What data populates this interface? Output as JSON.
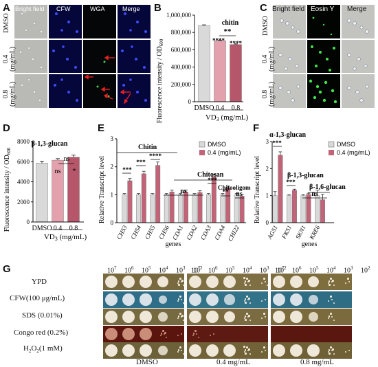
{
  "panels": {
    "A": {
      "letter": "A",
      "columns": [
        "Bright field",
        "CFW",
        "WGA",
        "Merge"
      ],
      "rows": [
        "DMSO",
        "0.4\n(mg/mL)",
        "0.8\n(mg/mL)"
      ]
    },
    "B": {
      "letter": "B",
      "ylabel": "Fluorescence intensity / OD",
      "ylabel_sub": "600",
      "annotation": "chitin",
      "sig": [
        "**",
        "****",
        "****"
      ],
      "yticks": [
        "0",
        "200,000",
        "400,000",
        "600,000",
        "800,000",
        "1,000,000"
      ],
      "xlabel": "VD",
      "xlabel_sub": "3",
      "xlabel_tail": " (mg/mL)"
    },
    "C": {
      "letter": "C",
      "columns": [
        "Bright field",
        "Eosin Y",
        "Merge"
      ],
      "rows": [
        "DMSO",
        "0.4\n(mg/mL)",
        "0.8\n(mg/mL)"
      ]
    },
    "D": {
      "letter": "D",
      "annotation": "β-1,3-glucan",
      "ylabel": "Fluorescence intensity / OD",
      "ylabel_sub": "600",
      "sig": [
        "ns",
        "ns",
        "*"
      ],
      "yticks": [
        "0",
        "2000",
        "4000",
        "6000",
        "8000"
      ],
      "xlabel": "VD",
      "xlabel_sub": "3",
      "xlabel_tail": " (mg/mL)"
    },
    "E": {
      "letter": "E",
      "ylabel": "Relative Transcript level",
      "xlabel": "genes",
      "legend": [
        "DMSO",
        "0.4 (mg/mL)"
      ],
      "groups": [
        "Chitin",
        "Chitosan",
        "Chitooligomer"
      ],
      "sig": [
        "***",
        "***",
        "****",
        "ns",
        "***",
        "**",
        "ns"
      ],
      "yticks": [
        "0",
        "1",
        "2",
        "3"
      ]
    },
    "F": {
      "letter": "F",
      "ylabel": "Relative Transcript level",
      "xlabel": "genes",
      "legend": [
        "DMSO",
        "0.4 (mg/mL)"
      ],
      "groups": [
        "α-1,3-glucan",
        "β-1,3-glucan",
        "β-1,6-glucan"
      ],
      "sig": [
        "***",
        "***",
        "ns"
      ],
      "yticks": [
        "0",
        "1",
        "2",
        "3"
      ]
    },
    "G": {
      "letter": "G",
      "dilutions": [
        "10",
        "10",
        "10",
        "10",
        "10",
        "10"
      ],
      "exponents": [
        "7",
        "6",
        "5",
        "4",
        "3",
        "2"
      ],
      "rows": [
        "YPD",
        "CFW(100 μg/mL)",
        "SDS (0.01%)",
        "Congo red (0.2%)",
        "H",
        "O"
      ],
      "h2o2": {
        "h": "H",
        "sub": "2",
        "o": "O",
        "sub2": "2",
        "tail": "(1 mM)"
      },
      "groups": [
        "DMSO",
        "0.4 mg/mL",
        "0.8 mg/mL"
      ]
    }
  },
  "chart_data": [
    {
      "panel": "B",
      "type": "bar",
      "categories": [
        "DMSO",
        "0.4",
        "0.8"
      ],
      "values": [
        880000,
        705000,
        660000
      ],
      "errors": [
        8000,
        6000,
        8000
      ],
      "colors": [
        "#d9d9d9",
        "#e3a0ad",
        "#b5566a"
      ],
      "ylim": [
        0,
        1000000
      ],
      "annotation": "chitin"
    },
    {
      "panel": "D",
      "type": "bar",
      "categories": [
        "DMSO",
        "0.4",
        "0.8"
      ],
      "values": [
        5850,
        6150,
        6450
      ],
      "errors": [
        200,
        150,
        200
      ],
      "colors": [
        "#d9d9d9",
        "#e3a0ad",
        "#b5566a"
      ],
      "ylim": [
        0,
        8000
      ],
      "annotation": "β-1,3-glucan"
    },
    {
      "panel": "E",
      "type": "bar",
      "categories": [
        "CHS3",
        "CHS4",
        "CHS5",
        "CHS6",
        "CDA1",
        "CDA2",
        "CDA3",
        "CDA4",
        "CHI22"
      ],
      "series": [
        {
          "name": "DMSO",
          "values": [
            1.0,
            1.0,
            1.0,
            1.0,
            1.0,
            1.0,
            1.0,
            1.0,
            1.0
          ],
          "errors": [
            0.04,
            0.04,
            0.04,
            0.04,
            0.04,
            0.04,
            0.04,
            0.04,
            0.04
          ],
          "color": "#d9d9d9"
        },
        {
          "name": "0.4 (mg/mL)",
          "values": [
            1.5,
            1.75,
            2.05,
            1.1,
            1.1,
            1.08,
            1.65,
            1.25,
            0.95
          ],
          "errors": [
            0.08,
            0.09,
            0.12,
            0.07,
            0.07,
            0.06,
            0.09,
            0.06,
            0.07
          ],
          "color": "#c06478"
        }
      ],
      "ylim": [
        0,
        3
      ]
    },
    {
      "panel": "F",
      "type": "bar",
      "categories": [
        "AGS1",
        "FKS1",
        "SKN1",
        "KRE6"
      ],
      "series": [
        {
          "name": "DMSO",
          "values": [
            1.0,
            1.0,
            1.0,
            1.0
          ],
          "errors": [
            0.15,
            0.04,
            0.04,
            0.2
          ],
          "color": "#d9d9d9"
        },
        {
          "name": "0.4 (mg/mL)",
          "values": [
            2.5,
            1.2,
            1.05,
            0.85
          ],
          "errors": [
            0.12,
            0.04,
            0.04,
            0.2
          ],
          "color": "#c06478"
        }
      ],
      "ylim": [
        0,
        3
      ]
    }
  ]
}
